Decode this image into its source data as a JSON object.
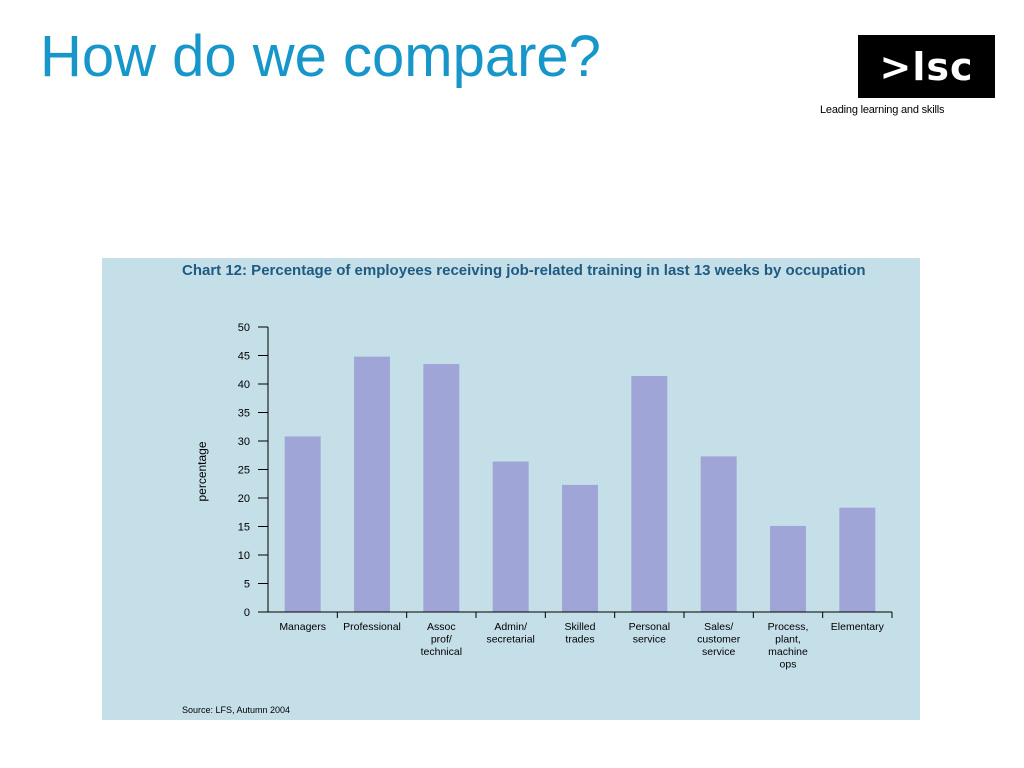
{
  "slide": {
    "title": "How do we compare?",
    "logo_text": ">lsc",
    "logo_tagline": "Leading learning and skills"
  },
  "chart_data": {
    "type": "bar",
    "title": "Chart 12: Percentage of employees receiving job-related training in last 13 weeks by occupation",
    "ylabel": "percentage",
    "xlabel": "",
    "ylim": [
      0,
      50
    ],
    "yticks": [
      0,
      5,
      10,
      15,
      20,
      25,
      30,
      35,
      40,
      45,
      50
    ],
    "grid": false,
    "categories": [
      [
        "Managers"
      ],
      [
        "Professional"
      ],
      [
        "Assoc",
        "prof/",
        "technical"
      ],
      [
        "Admin/",
        "secretarial"
      ],
      [
        "Skilled",
        "trades"
      ],
      [
        "Personal",
        "service"
      ],
      [
        "Sales/",
        "customer",
        "service"
      ],
      [
        "Process,",
        "plant,",
        "machine",
        "ops"
      ],
      [
        "Elementary"
      ]
    ],
    "values": [
      30.8,
      44.8,
      43.5,
      26.4,
      22.3,
      41.4,
      27.3,
      15.1,
      18.3
    ],
    "bar_color": "#9fa5d6",
    "source": "Source: LFS, Autumn 2004"
  }
}
